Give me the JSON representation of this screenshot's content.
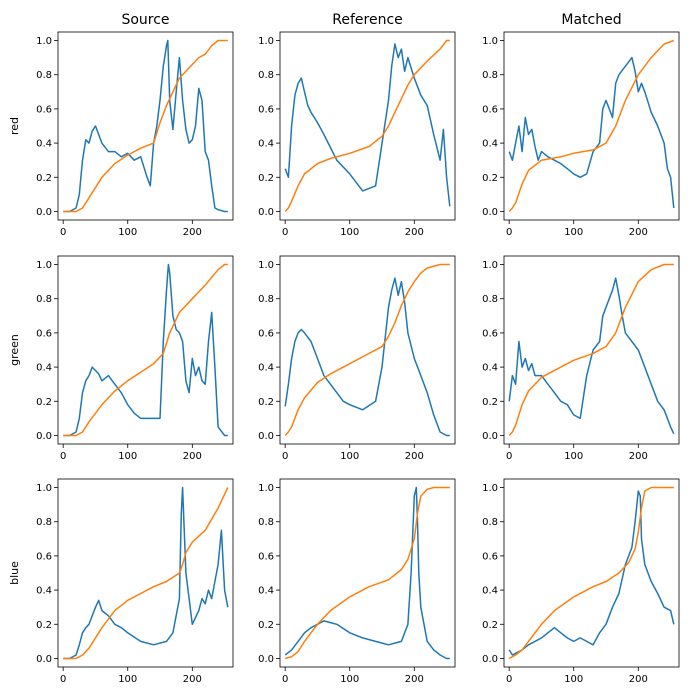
{
  "chart_data": {
    "type": "line",
    "layout": "3x3 grid",
    "columns": [
      "Source",
      "Reference",
      "Matched"
    ],
    "rows": [
      "red",
      "green",
      "blue"
    ],
    "xlim": [
      -8,
      263
    ],
    "ylim": [
      -0.05,
      1.05
    ],
    "xticks": [
      0,
      100,
      200
    ],
    "yticks": [
      0.0,
      0.2,
      0.4,
      0.6,
      0.8,
      1.0
    ],
    "ytick_labels": [
      "0.0",
      "0.2",
      "0.4",
      "0.6",
      "0.8",
      "1.0"
    ],
    "series_colors": {
      "histogram": "#1f77b4",
      "cdf": "#ff7f0e"
    },
    "grid": false,
    "legend": "none",
    "panels": [
      {
        "row": "red",
        "column": "Source",
        "histogram": {
          "x": [
            0,
            10,
            20,
            25,
            30,
            35,
            40,
            45,
            50,
            55,
            60,
            70,
            80,
            90,
            100,
            110,
            120,
            130,
            135,
            140,
            145,
            150,
            155,
            160,
            162,
            165,
            170,
            175,
            180,
            185,
            190,
            195,
            200,
            205,
            210,
            215,
            220,
            225,
            230,
            235,
            240,
            250,
            255
          ],
          "y": [
            0,
            0,
            0.02,
            0.1,
            0.3,
            0.42,
            0.4,
            0.47,
            0.5,
            0.45,
            0.4,
            0.35,
            0.35,
            0.32,
            0.34,
            0.3,
            0.32,
            0.2,
            0.15,
            0.4,
            0.5,
            0.65,
            0.85,
            0.97,
            1.0,
            0.65,
            0.48,
            0.7,
            0.9,
            0.65,
            0.48,
            0.4,
            0.42,
            0.5,
            0.72,
            0.65,
            0.35,
            0.3,
            0.15,
            0.02,
            0.01,
            0,
            0
          ]
        },
        "cdf": {
          "x": [
            0,
            20,
            30,
            40,
            60,
            80,
            100,
            120,
            140,
            150,
            160,
            180,
            200,
            210,
            220,
            230,
            240,
            250,
            255
          ],
          "y": [
            0,
            0,
            0.02,
            0.08,
            0.2,
            0.28,
            0.33,
            0.37,
            0.4,
            0.52,
            0.62,
            0.78,
            0.86,
            0.9,
            0.92,
            0.97,
            1.0,
            1.0,
            1.0
          ]
        }
      },
      {
        "row": "red",
        "column": "Reference",
        "histogram": {
          "x": [
            0,
            5,
            10,
            15,
            20,
            25,
            30,
            35,
            40,
            50,
            60,
            80,
            100,
            120,
            140,
            160,
            165,
            170,
            175,
            180,
            185,
            190,
            200,
            210,
            220,
            230,
            240,
            245,
            250,
            255
          ],
          "y": [
            0.25,
            0.2,
            0.5,
            0.68,
            0.75,
            0.78,
            0.7,
            0.62,
            0.58,
            0.52,
            0.45,
            0.3,
            0.22,
            0.12,
            0.15,
            0.65,
            0.85,
            0.98,
            0.9,
            0.95,
            0.82,
            0.9,
            0.78,
            0.68,
            0.62,
            0.45,
            0.3,
            0.48,
            0.2,
            0.03
          ]
        },
        "cdf": {
          "x": [
            0,
            5,
            10,
            20,
            30,
            50,
            70,
            100,
            130,
            150,
            160,
            170,
            180,
            190,
            200,
            220,
            240,
            250,
            255
          ],
          "y": [
            0,
            0.02,
            0.06,
            0.15,
            0.22,
            0.28,
            0.31,
            0.34,
            0.38,
            0.44,
            0.5,
            0.58,
            0.66,
            0.74,
            0.8,
            0.88,
            0.95,
            1.0,
            1.0
          ]
        }
      },
      {
        "row": "red",
        "column": "Matched",
        "histogram": {
          "x": [
            0,
            5,
            10,
            15,
            20,
            25,
            30,
            35,
            40,
            45,
            50,
            60,
            70,
            80,
            90,
            100,
            110,
            120,
            130,
            140,
            145,
            150,
            160,
            165,
            170,
            180,
            190,
            195,
            200,
            205,
            210,
            220,
            230,
            240,
            245,
            250,
            255
          ],
          "y": [
            0.35,
            0.3,
            0.4,
            0.5,
            0.35,
            0.55,
            0.45,
            0.48,
            0.38,
            0.3,
            0.35,
            0.32,
            0.3,
            0.28,
            0.25,
            0.22,
            0.2,
            0.22,
            0.35,
            0.4,
            0.6,
            0.65,
            0.55,
            0.75,
            0.8,
            0.85,
            0.9,
            0.82,
            0.7,
            0.75,
            0.7,
            0.58,
            0.5,
            0.4,
            0.25,
            0.2,
            0.02
          ]
        },
        "cdf": {
          "x": [
            0,
            5,
            10,
            20,
            30,
            50,
            80,
            100,
            130,
            150,
            165,
            180,
            200,
            220,
            240,
            255
          ],
          "y": [
            0,
            0.02,
            0.05,
            0.16,
            0.24,
            0.3,
            0.32,
            0.34,
            0.36,
            0.4,
            0.5,
            0.65,
            0.8,
            0.9,
            0.98,
            1.0
          ]
        }
      },
      {
        "row": "green",
        "column": "Source",
        "histogram": {
          "x": [
            0,
            10,
            20,
            25,
            30,
            35,
            40,
            45,
            50,
            55,
            60,
            70,
            80,
            90,
            100,
            110,
            120,
            130,
            140,
            150,
            155,
            160,
            163,
            165,
            170,
            175,
            180,
            185,
            190,
            195,
            200,
            205,
            210,
            215,
            220,
            225,
            230,
            235,
            240,
            250,
            255
          ],
          "y": [
            0,
            0,
            0.02,
            0.1,
            0.25,
            0.32,
            0.35,
            0.4,
            0.38,
            0.36,
            0.32,
            0.35,
            0.3,
            0.25,
            0.18,
            0.13,
            0.1,
            0.1,
            0.1,
            0.1,
            0.55,
            0.85,
            1.0,
            0.95,
            0.7,
            0.62,
            0.6,
            0.55,
            0.32,
            0.25,
            0.45,
            0.35,
            0.4,
            0.32,
            0.3,
            0.55,
            0.72,
            0.4,
            0.05,
            0,
            0
          ]
        },
        "cdf": {
          "x": [
            0,
            20,
            30,
            40,
            60,
            80,
            100,
            120,
            140,
            155,
            165,
            180,
            200,
            220,
            240,
            250,
            255
          ],
          "y": [
            0,
            0,
            0.02,
            0.08,
            0.18,
            0.26,
            0.32,
            0.37,
            0.42,
            0.48,
            0.6,
            0.72,
            0.8,
            0.88,
            0.97,
            1.0,
            1.0
          ]
        }
      },
      {
        "row": "green",
        "column": "Reference",
        "histogram": {
          "x": [
            0,
            5,
            10,
            15,
            20,
            25,
            30,
            40,
            50,
            60,
            70,
            80,
            90,
            100,
            120,
            140,
            150,
            160,
            165,
            170,
            175,
            180,
            185,
            190,
            200,
            210,
            220,
            230,
            240,
            250,
            255
          ],
          "y": [
            0.17,
            0.3,
            0.45,
            0.55,
            0.6,
            0.62,
            0.6,
            0.55,
            0.45,
            0.35,
            0.3,
            0.25,
            0.2,
            0.18,
            0.15,
            0.2,
            0.4,
            0.75,
            0.85,
            0.92,
            0.82,
            0.9,
            0.78,
            0.6,
            0.45,
            0.35,
            0.25,
            0.12,
            0.02,
            0,
            0
          ]
        },
        "cdf": {
          "x": [
            0,
            5,
            10,
            20,
            30,
            50,
            70,
            100,
            130,
            150,
            160,
            170,
            180,
            190,
            200,
            210,
            220,
            240,
            255
          ],
          "y": [
            0,
            0.02,
            0.05,
            0.15,
            0.22,
            0.31,
            0.36,
            0.42,
            0.48,
            0.52,
            0.58,
            0.66,
            0.76,
            0.84,
            0.9,
            0.95,
            0.98,
            1.0,
            1.0
          ]
        }
      },
      {
        "row": "green",
        "column": "Matched",
        "histogram": {
          "x": [
            0,
            5,
            10,
            15,
            20,
            25,
            30,
            35,
            40,
            50,
            60,
            70,
            80,
            90,
            100,
            110,
            120,
            130,
            140,
            145,
            150,
            160,
            165,
            170,
            175,
            180,
            190,
            200,
            210,
            220,
            230,
            240,
            250,
            255
          ],
          "y": [
            0.2,
            0.35,
            0.3,
            0.55,
            0.4,
            0.45,
            0.38,
            0.42,
            0.35,
            0.35,
            0.3,
            0.25,
            0.2,
            0.18,
            0.12,
            0.1,
            0.35,
            0.5,
            0.55,
            0.7,
            0.75,
            0.85,
            0.92,
            0.82,
            0.7,
            0.6,
            0.55,
            0.5,
            0.4,
            0.3,
            0.2,
            0.15,
            0.05,
            0.01
          ]
        },
        "cdf": {
          "x": [
            0,
            5,
            10,
            20,
            30,
            50,
            80,
            100,
            130,
            150,
            165,
            180,
            200,
            220,
            240,
            255
          ],
          "y": [
            0,
            0.02,
            0.06,
            0.18,
            0.26,
            0.34,
            0.4,
            0.44,
            0.48,
            0.52,
            0.6,
            0.75,
            0.9,
            0.97,
            1.0,
            1.0
          ]
        }
      },
      {
        "row": "blue",
        "column": "Source",
        "histogram": {
          "x": [
            0,
            10,
            20,
            25,
            30,
            35,
            40,
            45,
            50,
            55,
            60,
            70,
            80,
            90,
            100,
            120,
            140,
            160,
            170,
            180,
            183,
            185,
            187,
            190,
            195,
            200,
            210,
            215,
            220,
            225,
            230,
            235,
            240,
            245,
            250,
            255
          ],
          "y": [
            0,
            0,
            0.02,
            0.08,
            0.15,
            0.18,
            0.2,
            0.25,
            0.3,
            0.34,
            0.28,
            0.25,
            0.2,
            0.18,
            0.15,
            0.1,
            0.08,
            0.1,
            0.15,
            0.35,
            0.85,
            1.0,
            0.8,
            0.5,
            0.35,
            0.2,
            0.28,
            0.35,
            0.32,
            0.4,
            0.35,
            0.45,
            0.55,
            0.75,
            0.4,
            0.3
          ]
        },
        "cdf": {
          "x": [
            0,
            20,
            30,
            40,
            60,
            80,
            100,
            120,
            140,
            160,
            180,
            185,
            190,
            200,
            220,
            240,
            255
          ],
          "y": [
            0,
            0,
            0.02,
            0.06,
            0.18,
            0.28,
            0.34,
            0.38,
            0.42,
            0.45,
            0.5,
            0.55,
            0.62,
            0.68,
            0.75,
            0.88,
            1.0
          ]
        }
      },
      {
        "row": "blue",
        "column": "Reference",
        "histogram": {
          "x": [
            0,
            10,
            20,
            30,
            40,
            50,
            60,
            70,
            80,
            100,
            120,
            140,
            160,
            180,
            190,
            195,
            200,
            203,
            205,
            207,
            210,
            215,
            220,
            230,
            240,
            250,
            255
          ],
          "y": [
            0.02,
            0.05,
            0.1,
            0.15,
            0.18,
            0.2,
            0.22,
            0.21,
            0.2,
            0.15,
            0.12,
            0.1,
            0.08,
            0.1,
            0.2,
            0.5,
            0.95,
            1.0,
            0.8,
            0.5,
            0.3,
            0.2,
            0.1,
            0.05,
            0.02,
            0,
            0
          ]
        },
        "cdf": {
          "x": [
            0,
            10,
            20,
            30,
            50,
            70,
            100,
            130,
            160,
            180,
            190,
            200,
            205,
            210,
            220,
            230,
            240,
            255
          ],
          "y": [
            0,
            0.01,
            0.04,
            0.1,
            0.2,
            0.28,
            0.36,
            0.42,
            0.46,
            0.52,
            0.58,
            0.7,
            0.85,
            0.95,
            0.99,
            1.0,
            1.0,
            1.0
          ]
        }
      },
      {
        "row": "blue",
        "column": "Matched",
        "histogram": {
          "x": [
            0,
            5,
            10,
            20,
            30,
            40,
            50,
            60,
            70,
            80,
            90,
            100,
            110,
            120,
            130,
            140,
            150,
            160,
            170,
            180,
            190,
            195,
            200,
            203,
            205,
            210,
            220,
            230,
            240,
            250,
            255
          ],
          "y": [
            0.05,
            0.02,
            0.03,
            0.05,
            0.08,
            0.1,
            0.12,
            0.15,
            0.18,
            0.15,
            0.12,
            0.1,
            0.12,
            0.1,
            0.08,
            0.15,
            0.2,
            0.3,
            0.38,
            0.55,
            0.65,
            0.8,
            0.98,
            0.95,
            0.7,
            0.55,
            0.45,
            0.38,
            0.3,
            0.28,
            0.2
          ]
        },
        "cdf": {
          "x": [
            0,
            5,
            10,
            20,
            30,
            50,
            70,
            100,
            130,
            150,
            170,
            185,
            195,
            200,
            205,
            210,
            220,
            240,
            255
          ],
          "y": [
            0,
            0.01,
            0.02,
            0.05,
            0.1,
            0.2,
            0.28,
            0.36,
            0.42,
            0.45,
            0.5,
            0.56,
            0.64,
            0.74,
            0.88,
            0.98,
            1.0,
            1.0,
            1.0
          ]
        }
      }
    ]
  }
}
